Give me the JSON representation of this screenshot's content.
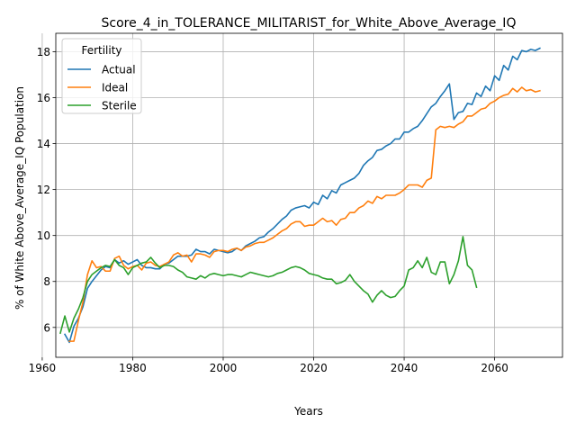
{
  "chart_data": {
    "type": "line",
    "title": "Score_4_in_TOLERANCE_MILITARIST_for_White_Above_Average_IQ",
    "xlabel": "Years",
    "ylabel": "% of White Above_Average_IQ Population",
    "xlim": [
      1963,
      2075
    ],
    "ylim": [
      4.7,
      18.8
    ],
    "xticks": [
      1960,
      1980,
      2000,
      2020,
      2040,
      2060
    ],
    "yticks": [
      6,
      8,
      10,
      12,
      14,
      16,
      18
    ],
    "grid": true,
    "legend": {
      "title": "Fertility",
      "placement": "top-left"
    },
    "series": [
      {
        "name": "Actual",
        "color": "#1f77b4",
        "points": [
          [
            1965,
            5.7
          ],
          [
            1966,
            5.35
          ],
          [
            1967,
            6.05
          ],
          [
            1968,
            6.4
          ],
          [
            1969,
            6.9
          ],
          [
            1970,
            7.7
          ],
          [
            1971,
            8.0
          ],
          [
            1972,
            8.25
          ],
          [
            1973,
            8.5
          ],
          [
            1974,
            8.65
          ],
          [
            1975,
            8.6
          ],
          [
            1976,
            8.95
          ],
          [
            1977,
            8.8
          ],
          [
            1978,
            8.9
          ],
          [
            1979,
            8.75
          ],
          [
            1980,
            8.85
          ],
          [
            1981,
            8.95
          ],
          [
            1982,
            8.7
          ],
          [
            1983,
            8.6
          ],
          [
            1984,
            8.6
          ],
          [
            1985,
            8.55
          ],
          [
            1986,
            8.55
          ],
          [
            1987,
            8.75
          ],
          [
            1988,
            8.8
          ],
          [
            1989,
            8.95
          ],
          [
            1990,
            9.1
          ],
          [
            1991,
            9.1
          ],
          [
            1992,
            9.1
          ],
          [
            1993,
            9.15
          ],
          [
            1994,
            9.4
          ],
          [
            1995,
            9.3
          ],
          [
            1996,
            9.3
          ],
          [
            1997,
            9.2
          ],
          [
            1998,
            9.4
          ],
          [
            1999,
            9.35
          ],
          [
            2000,
            9.3
          ],
          [
            2001,
            9.25
          ],
          [
            2002,
            9.3
          ],
          [
            2003,
            9.45
          ],
          [
            2004,
            9.35
          ],
          [
            2005,
            9.55
          ],
          [
            2006,
            9.65
          ],
          [
            2007,
            9.75
          ],
          [
            2008,
            9.9
          ],
          [
            2009,
            9.95
          ],
          [
            2010,
            10.15
          ],
          [
            2011,
            10.3
          ],
          [
            2012,
            10.5
          ],
          [
            2013,
            10.7
          ],
          [
            2014,
            10.85
          ],
          [
            2015,
            11.1
          ],
          [
            2016,
            11.2
          ],
          [
            2017,
            11.25
          ],
          [
            2018,
            11.3
          ],
          [
            2019,
            11.2
          ],
          [
            2020,
            11.45
          ],
          [
            2021,
            11.35
          ],
          [
            2022,
            11.75
          ],
          [
            2023,
            11.6
          ],
          [
            2024,
            11.95
          ],
          [
            2025,
            11.85
          ],
          [
            2026,
            12.2
          ],
          [
            2027,
            12.3
          ],
          [
            2028,
            12.4
          ],
          [
            2029,
            12.5
          ],
          [
            2030,
            12.7
          ],
          [
            2031,
            13.05
          ],
          [
            2032,
            13.25
          ],
          [
            2033,
            13.4
          ],
          [
            2034,
            13.7
          ],
          [
            2035,
            13.75
          ],
          [
            2036,
            13.9
          ],
          [
            2037,
            14.0
          ],
          [
            2038,
            14.2
          ],
          [
            2039,
            14.2
          ],
          [
            2040,
            14.5
          ],
          [
            2041,
            14.5
          ],
          [
            2042,
            14.65
          ],
          [
            2043,
            14.75
          ],
          [
            2044,
            15.0
          ],
          [
            2045,
            15.3
          ],
          [
            2046,
            15.6
          ],
          [
            2047,
            15.75
          ],
          [
            2048,
            16.05
          ],
          [
            2049,
            16.3
          ],
          [
            2050,
            16.6
          ],
          [
            2051,
            15.05
          ],
          [
            2052,
            15.35
          ],
          [
            2053,
            15.4
          ],
          [
            2054,
            15.75
          ],
          [
            2055,
            15.7
          ],
          [
            2056,
            16.2
          ],
          [
            2057,
            16.05
          ],
          [
            2058,
            16.5
          ],
          [
            2059,
            16.3
          ],
          [
            2060,
            16.95
          ],
          [
            2061,
            16.75
          ],
          [
            2062,
            17.4
          ],
          [
            2063,
            17.2
          ],
          [
            2064,
            17.8
          ],
          [
            2065,
            17.65
          ],
          [
            2066,
            18.05
          ],
          [
            2067,
            18.0
          ],
          [
            2068,
            18.1
          ],
          [
            2069,
            18.05
          ],
          [
            2070,
            18.15
          ]
        ]
      },
      {
        "name": "Ideal",
        "color": "#ff7f0e",
        "points": [
          [
            1966,
            5.4
          ],
          [
            1967,
            5.4
          ],
          [
            1968,
            6.3
          ],
          [
            1969,
            7.1
          ],
          [
            1970,
            8.3
          ],
          [
            1971,
            8.9
          ],
          [
            1972,
            8.6
          ],
          [
            1973,
            8.65
          ],
          [
            1974,
            8.45
          ],
          [
            1975,
            8.45
          ],
          [
            1976,
            9.0
          ],
          [
            1977,
            9.1
          ],
          [
            1978,
            8.7
          ],
          [
            1979,
            8.55
          ],
          [
            1980,
            8.65
          ],
          [
            1981,
            8.7
          ],
          [
            1982,
            8.5
          ],
          [
            1983,
            8.8
          ],
          [
            1984,
            8.85
          ],
          [
            1985,
            8.7
          ],
          [
            1986,
            8.65
          ],
          [
            1987,
            8.75
          ],
          [
            1988,
            8.85
          ],
          [
            1989,
            9.15
          ],
          [
            1990,
            9.25
          ],
          [
            1991,
            9.1
          ],
          [
            1992,
            9.15
          ],
          [
            1993,
            8.85
          ],
          [
            1994,
            9.2
          ],
          [
            1995,
            9.2
          ],
          [
            1996,
            9.15
          ],
          [
            1997,
            9.05
          ],
          [
            1998,
            9.3
          ],
          [
            1999,
            9.35
          ],
          [
            2000,
            9.35
          ],
          [
            2001,
            9.3
          ],
          [
            2002,
            9.4
          ],
          [
            2003,
            9.45
          ],
          [
            2004,
            9.35
          ],
          [
            2005,
            9.5
          ],
          [
            2006,
            9.55
          ],
          [
            2007,
            9.65
          ],
          [
            2008,
            9.7
          ],
          [
            2009,
            9.7
          ],
          [
            2010,
            9.8
          ],
          [
            2011,
            9.9
          ],
          [
            2012,
            10.05
          ],
          [
            2013,
            10.2
          ],
          [
            2014,
            10.3
          ],
          [
            2015,
            10.5
          ],
          [
            2016,
            10.6
          ],
          [
            2017,
            10.6
          ],
          [
            2018,
            10.4
          ],
          [
            2019,
            10.45
          ],
          [
            2020,
            10.45
          ],
          [
            2021,
            10.6
          ],
          [
            2022,
            10.75
          ],
          [
            2023,
            10.6
          ],
          [
            2024,
            10.65
          ],
          [
            2025,
            10.45
          ],
          [
            2026,
            10.7
          ],
          [
            2027,
            10.75
          ],
          [
            2028,
            11.0
          ],
          [
            2029,
            11.0
          ],
          [
            2030,
            11.2
          ],
          [
            2031,
            11.3
          ],
          [
            2032,
            11.5
          ],
          [
            2033,
            11.4
          ],
          [
            2034,
            11.7
          ],
          [
            2035,
            11.6
          ],
          [
            2036,
            11.75
          ],
          [
            2037,
            11.75
          ],
          [
            2038,
            11.75
          ],
          [
            2039,
            11.85
          ],
          [
            2040,
            12.0
          ],
          [
            2041,
            12.2
          ],
          [
            2042,
            12.2
          ],
          [
            2043,
            12.2
          ],
          [
            2044,
            12.1
          ],
          [
            2045,
            12.4
          ],
          [
            2046,
            12.5
          ],
          [
            2047,
            14.6
          ],
          [
            2048,
            14.75
          ],
          [
            2049,
            14.7
          ],
          [
            2050,
            14.75
          ],
          [
            2051,
            14.7
          ],
          [
            2052,
            14.85
          ],
          [
            2053,
            14.95
          ],
          [
            2054,
            15.2
          ],
          [
            2055,
            15.2
          ],
          [
            2056,
            15.35
          ],
          [
            2057,
            15.5
          ],
          [
            2058,
            15.55
          ],
          [
            2059,
            15.75
          ],
          [
            2060,
            15.85
          ],
          [
            2061,
            16.0
          ],
          [
            2062,
            16.1
          ],
          [
            2063,
            16.15
          ],
          [
            2064,
            16.4
          ],
          [
            2065,
            16.25
          ],
          [
            2066,
            16.45
          ],
          [
            2067,
            16.3
          ],
          [
            2068,
            16.35
          ],
          [
            2069,
            16.25
          ],
          [
            2070,
            16.3
          ]
        ]
      },
      {
        "name": "Sterile",
        "color": "#2ca02c",
        "points": [
          [
            1964,
            5.75
          ],
          [
            1965,
            6.5
          ],
          [
            1966,
            5.8
          ],
          [
            1967,
            6.4
          ],
          [
            1968,
            6.8
          ],
          [
            1969,
            7.3
          ],
          [
            1970,
            8.0
          ],
          [
            1971,
            8.3
          ],
          [
            1972,
            8.45
          ],
          [
            1973,
            8.6
          ],
          [
            1974,
            8.7
          ],
          [
            1975,
            8.65
          ],
          [
            1976,
            8.95
          ],
          [
            1977,
            8.7
          ],
          [
            1978,
            8.6
          ],
          [
            1979,
            8.3
          ],
          [
            1980,
            8.6
          ],
          [
            1981,
            8.7
          ],
          [
            1982,
            8.8
          ],
          [
            1983,
            8.85
          ],
          [
            1984,
            9.05
          ],
          [
            1985,
            8.8
          ],
          [
            1986,
            8.6
          ],
          [
            1987,
            8.7
          ],
          [
            1988,
            8.7
          ],
          [
            1989,
            8.65
          ],
          [
            1990,
            8.5
          ],
          [
            1991,
            8.4
          ],
          [
            1992,
            8.2
          ],
          [
            1993,
            8.15
          ],
          [
            1994,
            8.1
          ],
          [
            1995,
            8.25
          ],
          [
            1996,
            8.15
          ],
          [
            1997,
            8.3
          ],
          [
            1998,
            8.35
          ],
          [
            1999,
            8.3
          ],
          [
            2000,
            8.25
          ],
          [
            2001,
            8.3
          ],
          [
            2002,
            8.3
          ],
          [
            2003,
            8.25
          ],
          [
            2004,
            8.2
          ],
          [
            2005,
            8.3
          ],
          [
            2006,
            8.4
          ],
          [
            2007,
            8.35
          ],
          [
            2008,
            8.3
          ],
          [
            2009,
            8.25
          ],
          [
            2010,
            8.2
          ],
          [
            2011,
            8.25
          ],
          [
            2012,
            8.35
          ],
          [
            2013,
            8.4
          ],
          [
            2014,
            8.5
          ],
          [
            2015,
            8.6
          ],
          [
            2016,
            8.65
          ],
          [
            2017,
            8.6
          ],
          [
            2018,
            8.5
          ],
          [
            2019,
            8.35
          ],
          [
            2020,
            8.3
          ],
          [
            2021,
            8.25
          ],
          [
            2022,
            8.15
          ],
          [
            2023,
            8.1
          ],
          [
            2024,
            8.1
          ],
          [
            2025,
            7.9
          ],
          [
            2026,
            7.95
          ],
          [
            2027,
            8.05
          ],
          [
            2028,
            8.3
          ],
          [
            2029,
            8.0
          ],
          [
            2030,
            7.8
          ],
          [
            2031,
            7.6
          ],
          [
            2032,
            7.45
          ],
          [
            2033,
            7.1
          ],
          [
            2034,
            7.4
          ],
          [
            2035,
            7.6
          ],
          [
            2036,
            7.4
          ],
          [
            2037,
            7.3
          ],
          [
            2038,
            7.35
          ],
          [
            2039,
            7.6
          ],
          [
            2040,
            7.8
          ],
          [
            2041,
            8.5
          ],
          [
            2042,
            8.6
          ],
          [
            2043,
            8.9
          ],
          [
            2044,
            8.6
          ],
          [
            2045,
            9.05
          ],
          [
            2046,
            8.4
          ],
          [
            2047,
            8.3
          ],
          [
            2048,
            8.85
          ],
          [
            2049,
            8.85
          ],
          [
            2050,
            7.9
          ],
          [
            2051,
            8.3
          ],
          [
            2052,
            8.9
          ],
          [
            2053,
            9.95
          ],
          [
            2054,
            8.7
          ],
          [
            2055,
            8.5
          ],
          [
            2056,
            7.75
          ]
        ]
      }
    ]
  }
}
